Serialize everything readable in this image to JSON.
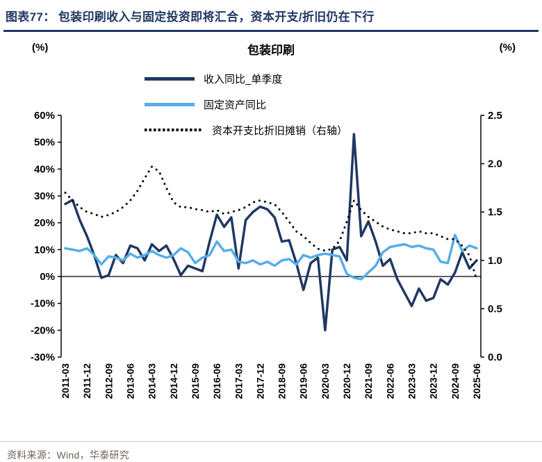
{
  "header": {
    "figure_label": "图表77：",
    "title": "包装印刷收入与固定投资即将汇合，资本开支/折旧仍在下行"
  },
  "footer": {
    "source": "资料来源：Wind，华泰研究"
  },
  "colors": {
    "accent_navy": "#1F3864",
    "light_blue": "#56ADE8",
    "dotted_black": "#000000"
  },
  "chart_data": {
    "type": "line",
    "title": "包装印刷",
    "left_axis_label": "(%)",
    "right_axis_label": "(%)",
    "grid": false,
    "legend_position": "top-center-vertical",
    "left_axis": {
      "min": -30,
      "max": 60,
      "step": 10,
      "ticks": [
        "60%",
        "50%",
        "40%",
        "30%",
        "20%",
        "10%",
        "0%",
        "-10%",
        "-20%",
        "-30%"
      ]
    },
    "right_axis": {
      "min": 0,
      "max": 2.5,
      "step": 0.5,
      "ticks": [
        "2.5",
        "2.0",
        "1.5",
        "1.0",
        "0.5",
        "0.0"
      ]
    },
    "x_tick_labels": [
      "2011-03",
      "2011-12",
      "2012-09",
      "2013-06",
      "2014-03",
      "2014-12",
      "2015-09",
      "2016-06",
      "2017-03",
      "2017-12",
      "2018-09",
      "2019-06",
      "2020-03",
      "2020-12",
      "2021-09",
      "2022-06",
      "2023-03",
      "2023-12",
      "2024-09",
      "2025-06"
    ],
    "categories": [
      "2011-03",
      "2011-06",
      "2011-09",
      "2011-12",
      "2012-03",
      "2012-06",
      "2012-09",
      "2012-12",
      "2013-03",
      "2013-06",
      "2013-09",
      "2013-12",
      "2014-03",
      "2014-06",
      "2014-09",
      "2014-12",
      "2015-03",
      "2015-06",
      "2015-09",
      "2015-12",
      "2016-03",
      "2016-06",
      "2016-09",
      "2016-12",
      "2017-03",
      "2017-06",
      "2017-09",
      "2017-12",
      "2018-03",
      "2018-06",
      "2018-09",
      "2018-12",
      "2019-03",
      "2019-06",
      "2019-09",
      "2019-12",
      "2020-03",
      "2020-06",
      "2020-09",
      "2020-12",
      "2021-03",
      "2021-06",
      "2021-09",
      "2021-12",
      "2022-03",
      "2022-06",
      "2022-09",
      "2022-12",
      "2023-03",
      "2023-06",
      "2023-09",
      "2023-12",
      "2024-03",
      "2024-06",
      "2024-09",
      "2024-12",
      "2025-03",
      "2025-06"
    ],
    "series": [
      {
        "name": "收入同比_单季度",
        "axis": "left",
        "style": "solid",
        "color": "#1F3864",
        "values": [
          27,
          28.5,
          21,
          15,
          8,
          -0.5,
          0.5,
          8,
          5,
          11.5,
          10.5,
          6,
          12,
          9.5,
          11.5,
          6.5,
          0.5,
          4,
          3,
          2,
          13,
          23,
          18.5,
          22,
          3,
          21,
          24,
          26,
          25,
          22,
          13,
          13.5,
          5,
          -5,
          5,
          7,
          -20,
          10,
          11,
          6,
          53,
          15,
          20.5,
          13,
          4,
          6.5,
          -1,
          -6,
          -11,
          -4.5,
          -9,
          -8,
          -1,
          -3,
          1.5,
          9,
          3,
          6
        ]
      },
      {
        "name": "固定资产同比",
        "axis": "left",
        "style": "solid",
        "color": "#56ADE8",
        "values": [
          10.5,
          10,
          9.5,
          10.5,
          8,
          4.5,
          7.5,
          7,
          6,
          8.5,
          7,
          8,
          9.5,
          8,
          7,
          8,
          10.5,
          9,
          5,
          7,
          8,
          13,
          9.5,
          10,
          5.5,
          5,
          6,
          4.5,
          5.5,
          4,
          6,
          6.5,
          4.5,
          8,
          7,
          8,
          8.5,
          8,
          7.5,
          1,
          -0.5,
          -1,
          1.5,
          4,
          9,
          11,
          11.5,
          12,
          11,
          11.5,
          10.5,
          10,
          5.5,
          5,
          15.5,
          9.5,
          11.5,
          10.5
        ]
      },
      {
        "name": "资本开支比折旧摊销（右轴）",
        "axis": "right",
        "style": "dotted",
        "color": "#000000",
        "values": [
          1.7,
          1.62,
          1.55,
          1.5,
          1.48,
          1.45,
          1.47,
          1.5,
          1.55,
          1.62,
          1.72,
          1.85,
          1.97,
          1.92,
          1.75,
          1.6,
          1.55,
          1.55,
          1.53,
          1.52,
          1.5,
          1.52,
          1.48,
          1.5,
          1.52,
          1.55,
          1.6,
          1.62,
          1.6,
          1.58,
          1.5,
          1.4,
          1.3,
          1.25,
          1.18,
          1.12,
          1.1,
          1.12,
          1.2,
          1.4,
          1.62,
          1.52,
          1.45,
          1.4,
          1.35,
          1.32,
          1.3,
          1.28,
          1.28,
          1.3,
          1.28,
          1.28,
          1.25,
          1.22,
          1.22,
          1.15,
          1.05,
          0.8
        ]
      }
    ]
  }
}
